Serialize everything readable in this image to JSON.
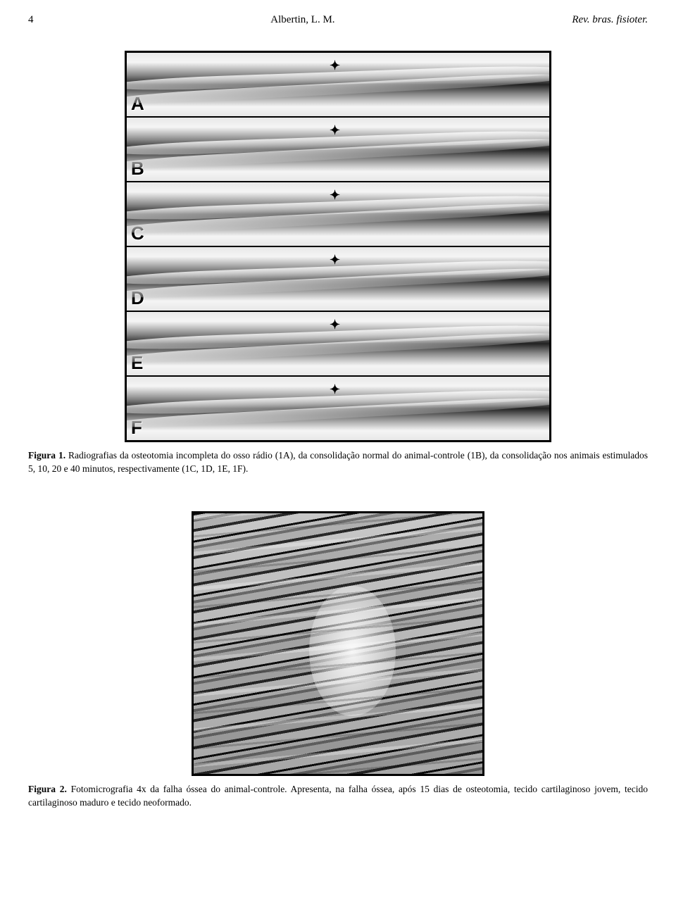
{
  "header": {
    "page_number": "4",
    "author": "Albertin, L. M.",
    "journal": "Rev. bras. fisioter."
  },
  "figure1": {
    "panels": [
      {
        "label": "A",
        "marker": "✦"
      },
      {
        "label": "B",
        "marker": "✦"
      },
      {
        "label": "C",
        "marker": "✦"
      },
      {
        "label": "D",
        "marker": "✦"
      },
      {
        "label": "E",
        "marker": "✦"
      },
      {
        "label": "F",
        "marker": "✦"
      }
    ],
    "caption_label": "Figura 1.",
    "caption_text": " Radiografias da osteotomia incompleta do osso rádio (1A), da consolidação normal do animal-controle (1B), da consolidação nos animais estimulados 5, 10, 20 e 40 minutos, respectivamente (1C, 1D, 1E, 1F)."
  },
  "figure2": {
    "caption_label": "Figura 2.",
    "caption_text": " Fotomicrografia 4x da falha óssea do animal-controle. Apresenta, na falha óssea, após 15 dias de osteotomia, tecido cartilaginoso jovem, tecido cartilaginoso maduro e tecido neoformado."
  }
}
